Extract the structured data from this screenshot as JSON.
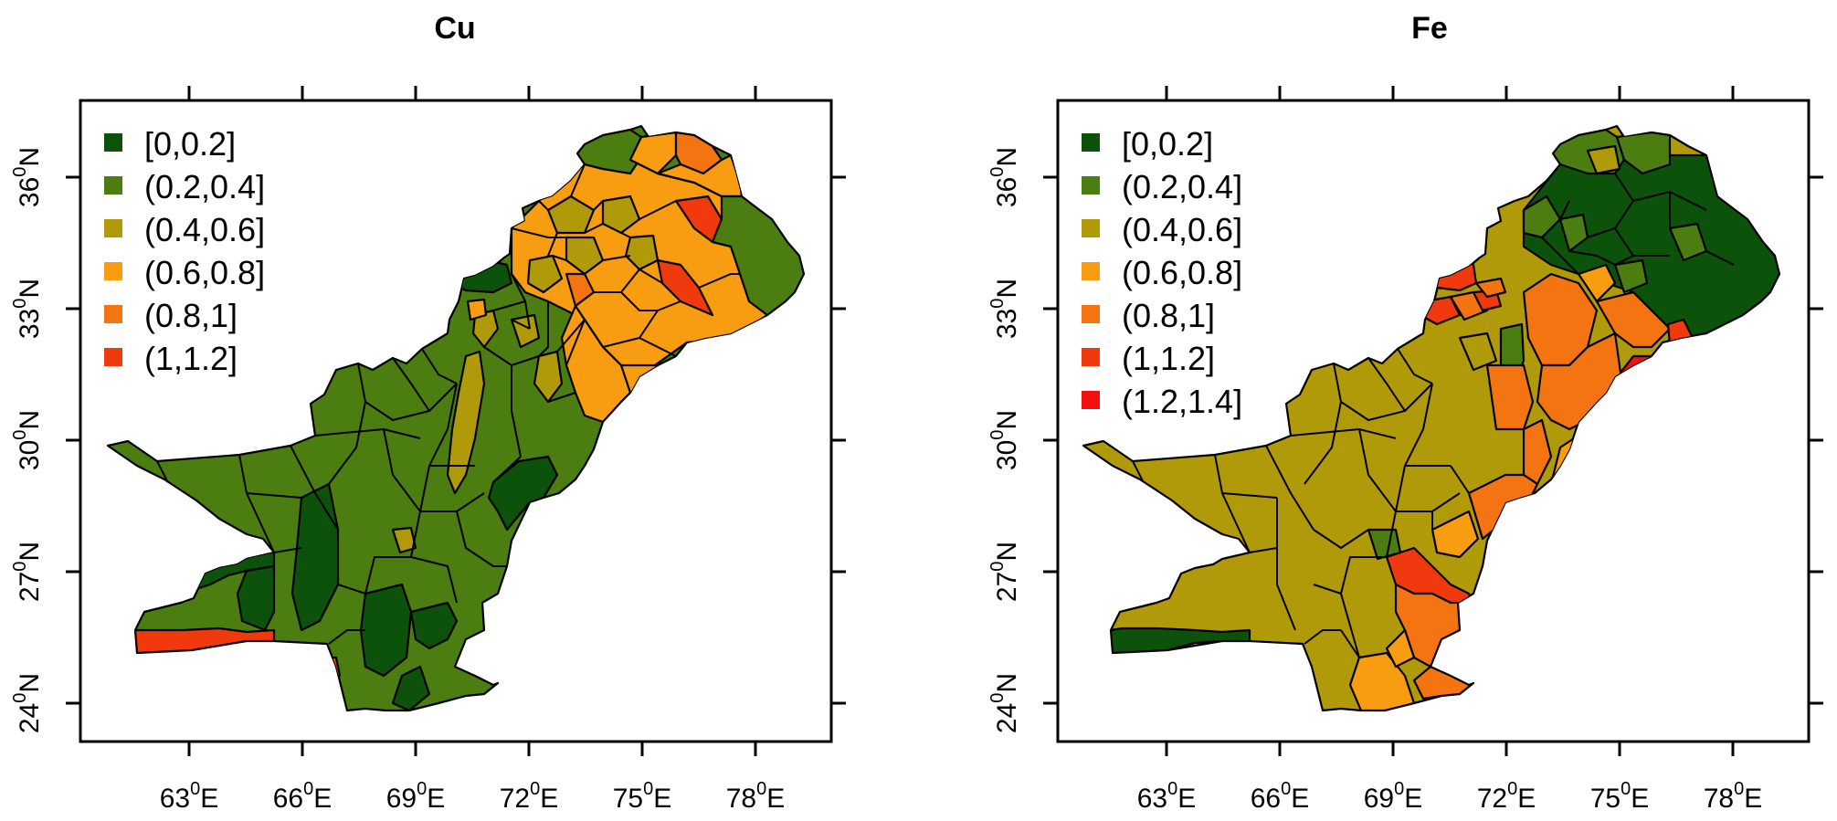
{
  "panels": [
    {
      "title": "Cu",
      "x_ticks": [
        {
          "deg": "63",
          "dir": "E"
        },
        {
          "deg": "66",
          "dir": "E"
        },
        {
          "deg": "69",
          "dir": "E"
        },
        {
          "deg": "72",
          "dir": "E"
        },
        {
          "deg": "75",
          "dir": "E"
        },
        {
          "deg": "78",
          "dir": "E"
        }
      ],
      "y_ticks": [
        {
          "deg": "24",
          "dir": "N"
        },
        {
          "deg": "27",
          "dir": "N"
        },
        {
          "deg": "30",
          "dir": "N"
        },
        {
          "deg": "33",
          "dir": "N"
        },
        {
          "deg": "36",
          "dir": "N"
        }
      ],
      "legend": [
        {
          "label": "[0,0.2]",
          "color": "#0d520a"
        },
        {
          "label": "(0.2,0.4]",
          "color": "#4c7d10"
        },
        {
          "label": "(0.4,0.6]",
          "color": "#b19a09"
        },
        {
          "label": "(0.6,0.8]",
          "color": "#f89c12"
        },
        {
          "label": "(0.8,1]",
          "color": "#f57412"
        },
        {
          "label": "(1,1.2]",
          "color": "#f03a0e"
        }
      ]
    },
    {
      "title": "Fe",
      "x_ticks": [
        {
          "deg": "63",
          "dir": "E"
        },
        {
          "deg": "66",
          "dir": "E"
        },
        {
          "deg": "69",
          "dir": "E"
        },
        {
          "deg": "72",
          "dir": "E"
        },
        {
          "deg": "75",
          "dir": "E"
        },
        {
          "deg": "78",
          "dir": "E"
        }
      ],
      "y_ticks": [
        {
          "deg": "24",
          "dir": "N"
        },
        {
          "deg": "27",
          "dir": "N"
        },
        {
          "deg": "30",
          "dir": "N"
        },
        {
          "deg": "33",
          "dir": "N"
        },
        {
          "deg": "36",
          "dir": "N"
        }
      ],
      "legend": [
        {
          "label": "[0,0.2]",
          "color": "#0d520a"
        },
        {
          "label": "(0.2,0.4]",
          "color": "#4c7d10"
        },
        {
          "label": "(0.4,0.6]",
          "color": "#b19a09"
        },
        {
          "label": "(0.6,0.8]",
          "color": "#f89c12"
        },
        {
          "label": "(0.8,1]",
          "color": "#f57412"
        },
        {
          "label": "(1,1.2]",
          "color": "#f03a0e"
        },
        {
          "label": "(1.2,1.4]",
          "color": "#f21010"
        }
      ]
    }
  ]
}
